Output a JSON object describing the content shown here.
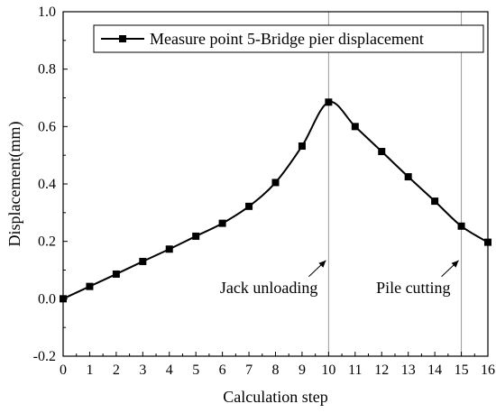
{
  "chart_data": {
    "type": "line",
    "xlabel": "Calculation step",
    "ylabel": "Displacement(mm)",
    "xlim": [
      0,
      16
    ],
    "ylim": [
      -0.2,
      1.0
    ],
    "xticks": [
      "0",
      "1",
      "2",
      "3",
      "4",
      "5",
      "6",
      "7",
      "8",
      "9",
      "10",
      "11",
      "12",
      "13",
      "14",
      "15",
      "16"
    ],
    "yticks": [
      "-0.2",
      "0.0",
      "0.2",
      "0.4",
      "0.6",
      "0.8",
      "1.0"
    ],
    "grid": false,
    "legend_position": "top-right",
    "series": [
      {
        "name": "Measure point 5-Bridge pier displacement",
        "color": "#000000",
        "marker": "square",
        "x": [
          0,
          1,
          2,
          3,
          4,
          5,
          6,
          7,
          8,
          9,
          10,
          11,
          12,
          13,
          14,
          15,
          16
        ],
        "y": [
          0.0,
          0.043,
          0.086,
          0.13,
          0.173,
          0.218,
          0.263,
          0.322,
          0.405,
          0.532,
          0.685,
          0.6,
          0.513,
          0.425,
          0.34,
          0.253,
          0.197
        ]
      }
    ],
    "reference_lines": [
      {
        "axis": "x",
        "value": 10,
        "color": "#999999"
      },
      {
        "axis": "x",
        "value": 15,
        "color": "#999999"
      }
    ],
    "annotations": [
      {
        "text": "Jack unloading",
        "points_to": [
          10,
          0.14
        ]
      },
      {
        "text": "Pile cutting",
        "points_to": [
          15,
          0.14
        ]
      }
    ]
  }
}
